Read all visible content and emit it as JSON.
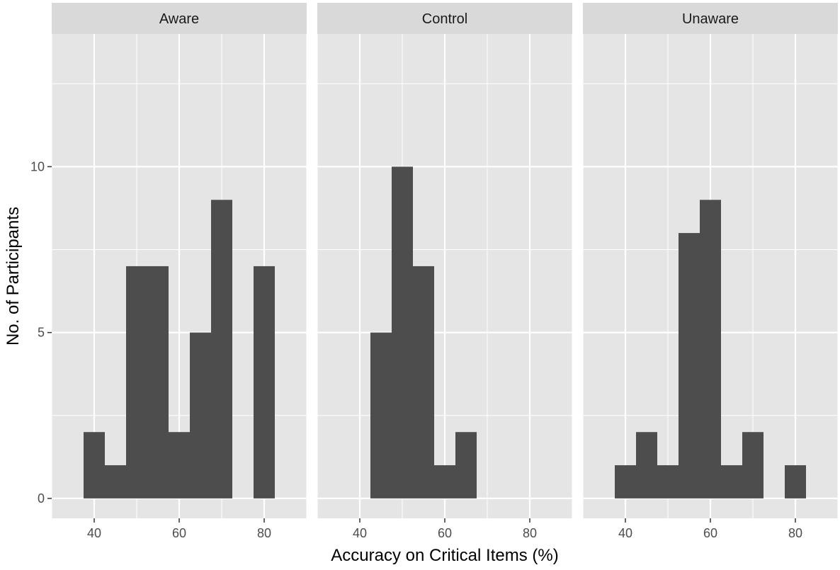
{
  "chart_data": {
    "type": "bar",
    "chart_kind": "faceted histogram",
    "xlabel": "Accuracy on Critical Items (%)",
    "ylabel": "No. of Participants",
    "xlim": [
      30,
      90
    ],
    "ylim": [
      -0.6,
      14
    ],
    "x_ticks": [
      40,
      60,
      80
    ],
    "y_ticks": [
      0,
      5,
      10
    ],
    "bin_width": 5,
    "grid": true,
    "colors": {
      "bar": "#4d4d4d",
      "panel_background": "#e5e5e5",
      "strip_background": "#d9d9d9",
      "grid": "#ffffff"
    },
    "facets": [
      {
        "label": "Aware",
        "bins": [
          {
            "x": 40,
            "count": 2
          },
          {
            "x": 45,
            "count": 1
          },
          {
            "x": 50,
            "count": 7
          },
          {
            "x": 55,
            "count": 7
          },
          {
            "x": 60,
            "count": 2
          },
          {
            "x": 65,
            "count": 5
          },
          {
            "x": 70,
            "count": 9
          },
          {
            "x": 80,
            "count": 7
          }
        ]
      },
      {
        "label": "Control",
        "bins": [
          {
            "x": 45,
            "count": 5
          },
          {
            "x": 50,
            "count": 10
          },
          {
            "x": 55,
            "count": 7
          },
          {
            "x": 60,
            "count": 1
          },
          {
            "x": 65,
            "count": 2
          }
        ]
      },
      {
        "label": "Unaware",
        "bins": [
          {
            "x": 40,
            "count": 1
          },
          {
            "x": 45,
            "count": 2
          },
          {
            "x": 50,
            "count": 1
          },
          {
            "x": 55,
            "count": 8
          },
          {
            "x": 60,
            "count": 9
          },
          {
            "x": 65,
            "count": 1
          },
          {
            "x": 70,
            "count": 2
          },
          {
            "x": 80,
            "count": 1
          }
        ]
      }
    ]
  }
}
